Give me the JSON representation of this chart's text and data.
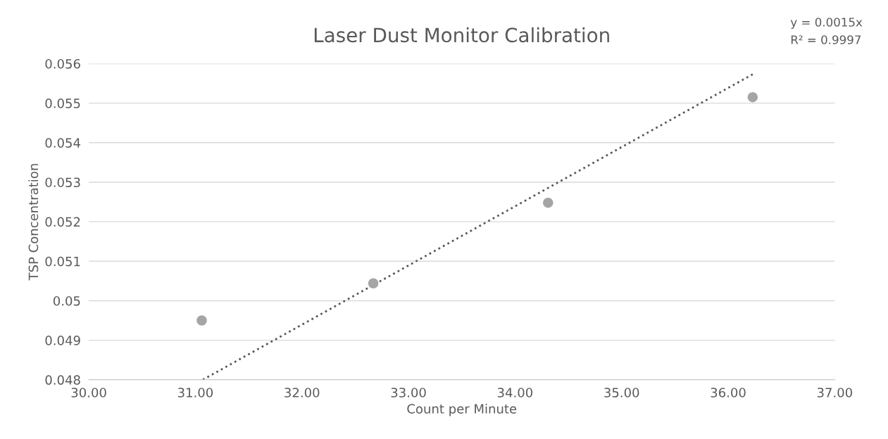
{
  "chart_data": {
    "type": "scatter",
    "title": "Laser Dust Monitor Calibration",
    "xlabel": "Count per Minute",
    "ylabel": "TSP Concentration",
    "x": [
      31.06,
      32.67,
      34.31,
      36.23
    ],
    "series": [
      {
        "color": "#a5a5a5",
        "marker": "circle",
        "values": [
          0.0495,
          0.05044,
          0.05248,
          0.05515
        ]
      },
      {
        "type": "line",
        "color": "#595959",
        "line_style": "dotted",
        "marker": "none",
        "x": [
          31.07,
          36.23
        ],
        "values": [
          0.048,
          0.05573
        ]
      }
    ],
    "xlim": [
      30,
      37
    ],
    "xticks": [
      {
        "value": 30,
        "label": "30.00"
      },
      {
        "value": 31,
        "label": "31.00"
      },
      {
        "value": 32,
        "label": "32.00"
      },
      {
        "value": 33,
        "label": "33.00"
      },
      {
        "value": 34,
        "label": "34.00"
      },
      {
        "value": 35,
        "label": "35.00"
      },
      {
        "value": 36,
        "label": "36.00"
      },
      {
        "value": 37,
        "label": "37.00"
      }
    ],
    "ylim": [
      0.048,
      0.056
    ],
    "yticks": [
      0.048,
      0.049,
      {
        "value": 0.05,
        "label": "0.05"
      },
      0.051,
      0.052,
      0.053,
      0.054,
      0.055,
      0.056
    ],
    "grid": "y",
    "annotations": [
      "y = 0.0015x",
      "R² = 0.9997"
    ]
  }
}
